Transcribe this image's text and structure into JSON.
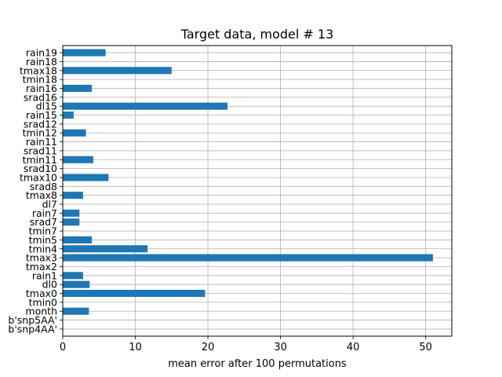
{
  "chart_data": {
    "type": "bar",
    "orientation": "horizontal",
    "title": "Target data, model # 13",
    "xlabel": "mean error after 100 permutations",
    "ylabel": "",
    "xlim": [
      0,
      53.6
    ],
    "xticks": [
      0,
      10,
      20,
      30,
      40,
      50
    ],
    "grid": true,
    "bar_color": "#1f77b4",
    "categories": [
      "b'snp4AA'",
      "b'snp5AA'",
      "month",
      "tmin0",
      "tmax0",
      "dl0",
      "rain1",
      "tmax2",
      "tmax3",
      "tmin4",
      "tmin5",
      "tmin7",
      "srad7",
      "rain7",
      "dl7",
      "tmax8",
      "srad8",
      "tmax10",
      "srad10",
      "tmin11",
      "srad11",
      "rain11",
      "tmin12",
      "srad12",
      "rain15",
      "dl15",
      "srad16",
      "rain16",
      "tmin18",
      "tmax18",
      "rain18",
      "rain19"
    ],
    "values": [
      0,
      0,
      3.6,
      0,
      19.6,
      3.7,
      2.8,
      0,
      51.0,
      11.7,
      4.0,
      0,
      2.3,
      2.3,
      0,
      2.8,
      0,
      6.3,
      0,
      4.2,
      0,
      0,
      3.2,
      0,
      1.5,
      22.7,
      0,
      4.0,
      0,
      15.0,
      0,
      5.9
    ]
  }
}
